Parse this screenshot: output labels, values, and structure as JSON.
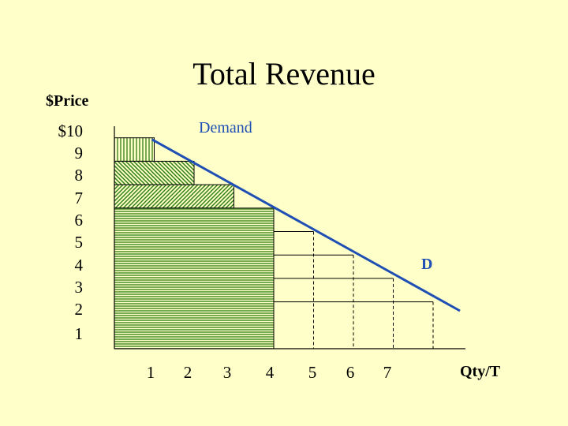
{
  "chart_data": {
    "type": "bar",
    "title": "Total Revenue",
    "ylabel": "$Price",
    "xlabel": "Qty/T",
    "y_tick_labels": [
      "$10",
      "9",
      "8",
      "7",
      "6",
      "5",
      "4",
      "3",
      "2",
      "1"
    ],
    "x_tick_labels": [
      "1",
      "2",
      "3",
      "4",
      "5",
      "6",
      "7"
    ],
    "xlim": [
      0,
      8
    ],
    "ylim": [
      0,
      10
    ],
    "demand_curve": {
      "name": "Demand",
      "end_label": "D",
      "points": [
        [
          1,
          9.0
        ],
        [
          8.0,
          1.0
        ]
      ]
    },
    "revenue_rectangles": [
      {
        "quantity": 1,
        "price": 9
      },
      {
        "quantity": 2,
        "price": 8
      },
      {
        "quantity": 3,
        "price": 7
      },
      {
        "quantity": 4,
        "price": 6
      }
    ],
    "outline_rectangles": [
      {
        "quantity": 5,
        "price": 5
      },
      {
        "quantity": 6,
        "price": 4
      },
      {
        "quantity": 7,
        "price": 3
      },
      {
        "quantity": 8,
        "price": 2
      }
    ],
    "grid": false,
    "legend": "none"
  },
  "colors": {
    "background": "#ffffc9",
    "demand_line": "#1f4fb4",
    "hatch": "#2f7d12",
    "axis": "#000000"
  }
}
